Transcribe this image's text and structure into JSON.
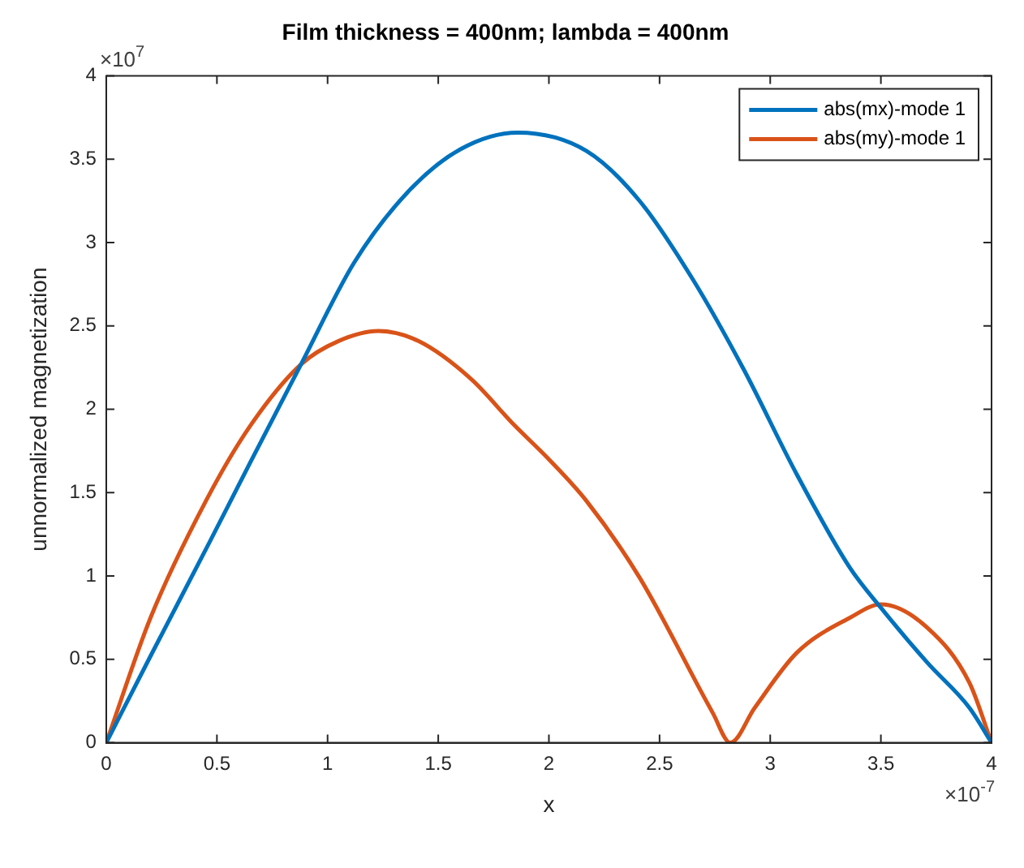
{
  "chart_data": {
    "type": "line",
    "title": "Film thickness = 400nm; lambda = 400nm",
    "xlabel": "x",
    "ylabel": "unnormalized magnetization",
    "annotations": [
      "×10$^{7}$",
      "×10$^{-7}$"
    ],
    "xlim": [
      0,
      4
    ],
    "xticks": [
      0,
      0.5,
      1,
      1.5,
      2,
      2.5,
      3,
      3.5,
      4
    ],
    "ylim": [
      0,
      4
    ],
    "yticks": [
      0,
      0.5,
      1,
      1.5,
      2,
      2.5,
      3,
      3.5,
      4
    ],
    "grid": false,
    "legend": "top right",
    "marker": "none",
    "line_style": "solid",
    "series": [
      {
        "name": "abs(mx)-mode 1",
        "color": "#0072bd",
        "x": [
          0,
          0.2,
          0.45,
          0.65,
          0.88,
          1.12,
          1.36,
          1.6,
          1.86,
          2.17,
          2.41,
          2.65,
          2.88,
          3.12,
          3.36,
          3.5,
          3.71,
          3.9,
          4
        ],
        "values": [
          0,
          0.52,
          1.16,
          1.68,
          2.27,
          2.88,
          3.3,
          3.56,
          3.66,
          3.55,
          3.25,
          2.78,
          2.24,
          1.61,
          1.05,
          0.81,
          0.48,
          0.21,
          0
        ]
      },
      {
        "name": "abs(my)-mode 1",
        "color": "#d95319",
        "x": [
          0,
          0.2,
          0.45,
          0.65,
          0.88,
          1.05,
          1.23,
          1.41,
          1.65,
          1.84,
          2,
          2.17,
          2.41,
          2.74,
          2.82,
          2.93,
          3.12,
          3.36,
          3.5,
          3.71,
          3.9,
          4
        ],
        "values": [
          0,
          0.75,
          1.45,
          1.9,
          2.27,
          2.41,
          2.47,
          2.41,
          2.18,
          1.91,
          1.7,
          1.45,
          0.99,
          0.18,
          0,
          0.21,
          0.54,
          0.75,
          0.83,
          0.69,
          0.36,
          0
        ]
      }
    ]
  }
}
